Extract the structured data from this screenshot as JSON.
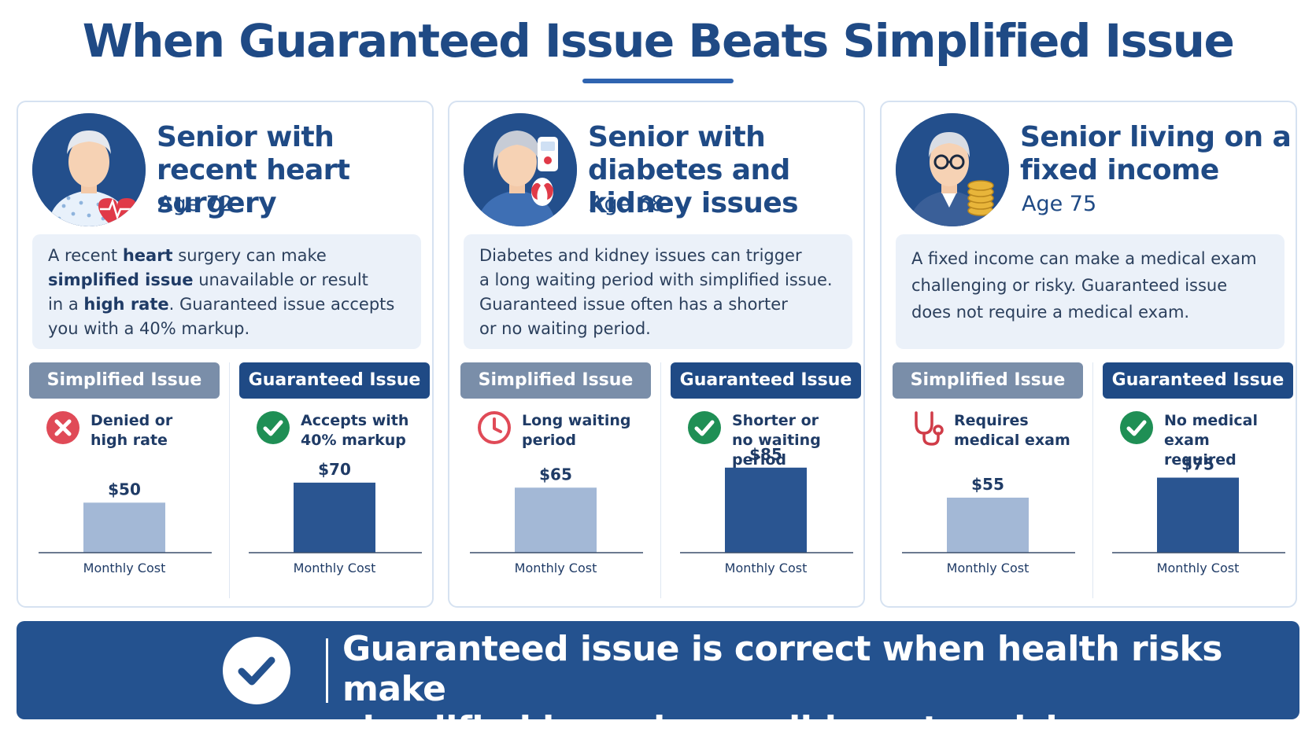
{
  "title": "When Guaranteed Issue Beats Simplified Issue",
  "colors": {
    "navy": "#1f4a85",
    "simplified": "#7a8ea9",
    "simplified_bar": "#a3b8d6",
    "guaranteed_bar": "#2a5591",
    "panel": "#ebf1f9",
    "denied_red": "#e04a57",
    "check_green": "#1f8f55"
  },
  "scenarios": [
    {
      "title": "Senior with recent heart surgery",
      "age": "Age 72",
      "avatar_icon": "senior-man-heart-icon",
      "description": [
        [
          [
            "A recent ",
            false
          ],
          [
            "heart",
            true
          ],
          [
            " surgery can make",
            false
          ]
        ],
        [
          [
            "simplified issue",
            true
          ],
          [
            " unavailable or result",
            false
          ]
        ],
        [
          [
            "in a ",
            false
          ],
          [
            "high rate",
            true
          ],
          [
            ". Guaranteed issue accepts",
            false
          ]
        ],
        [
          [
            "you with a 40% markup.",
            false
          ]
        ]
      ],
      "simplified": {
        "label": "Simplified Issue",
        "icon": "x-circle-icon",
        "status": [
          "Denied or",
          "high rate"
        ]
      },
      "guaranteed": {
        "label": "Guaranteed Issue",
        "icon": "check-circle-icon",
        "status": [
          "Accepts with",
          "40% markup"
        ]
      }
    },
    {
      "title": "Senior with diabetes and kidney issues",
      "age": "Age 68",
      "avatar_icon": "senior-woman-glucose-kidney-icon",
      "description": [
        [
          [
            "Diabetes and kidney issues can trigger",
            false
          ]
        ],
        [
          [
            "a long waiting period with simplified issue.",
            false
          ]
        ],
        [
          [
            "Guaranteed issue often has a shorter",
            false
          ]
        ],
        [
          [
            "or no waiting period.",
            false
          ]
        ]
      ],
      "simplified": {
        "label": "Simplified Issue",
        "icon": "clock-icon",
        "status": [
          "Long waiting",
          "period"
        ]
      },
      "guaranteed": {
        "label": "Guaranteed Issue",
        "icon": "check-circle-icon",
        "status": [
          "Shorter or",
          "no waiting period"
        ]
      }
    },
    {
      "title": "Senior living on a fixed income",
      "age": "Age 75",
      "avatar_icon": "senior-man-coins-icon",
      "description": [
        [
          [
            "A fixed income can make a medical exam",
            false
          ]
        ],
        [
          [
            "challenging or risky. Guaranteed issue",
            false
          ]
        ],
        [
          [
            "does not require a medical exam.",
            false
          ]
        ]
      ],
      "simplified": {
        "label": "Simplified Issue",
        "icon": "stethoscope-icon",
        "status": [
          "Requires",
          "medical exam"
        ]
      },
      "guaranteed": {
        "label": "Guaranteed Issue",
        "icon": "check-circle-icon",
        "status": [
          "No medical exam",
          "required"
        ]
      }
    }
  ],
  "chart_data": [
    {
      "type": "bar",
      "categories": [
        "Simplified Issue"
      ],
      "values": [
        50
      ],
      "value_labels": [
        "$50"
      ],
      "xlabel": "Monthly Cost",
      "ylim": [
        0,
        110
      ]
    },
    {
      "type": "bar",
      "categories": [
        "Guaranteed Issue"
      ],
      "values": [
        70
      ],
      "value_labels": [
        "$70"
      ],
      "xlabel": "Monthly Cost",
      "ylim": [
        0,
        110
      ]
    },
    {
      "type": "bar",
      "categories": [
        "Simplified Issue"
      ],
      "values": [
        65
      ],
      "value_labels": [
        "$65"
      ],
      "xlabel": "Monthly Cost",
      "ylim": [
        0,
        110
      ]
    },
    {
      "type": "bar",
      "categories": [
        "Guaranteed Issue"
      ],
      "values": [
        85
      ],
      "value_labels": [
        "$85"
      ],
      "xlabel": "Monthly Cost",
      "ylim": [
        0,
        110
      ]
    },
    {
      "type": "bar",
      "categories": [
        "Simplified Issue"
      ],
      "values": [
        55
      ],
      "value_labels": [
        "$55"
      ],
      "xlabel": "Monthly Cost",
      "ylim": [
        0,
        110
      ]
    },
    {
      "type": "bar",
      "categories": [
        "Guaranteed Issue"
      ],
      "values": [
        75
      ],
      "value_labels": [
        "$75"
      ],
      "xlabel": "Monthly Cost",
      "ylim": [
        0,
        110
      ]
    }
  ],
  "banner": {
    "icon": "check-circle-icon",
    "lines": [
      "Guaranteed issue is correct when health risks make",
      "simplified issue impossible or too risky."
    ]
  }
}
